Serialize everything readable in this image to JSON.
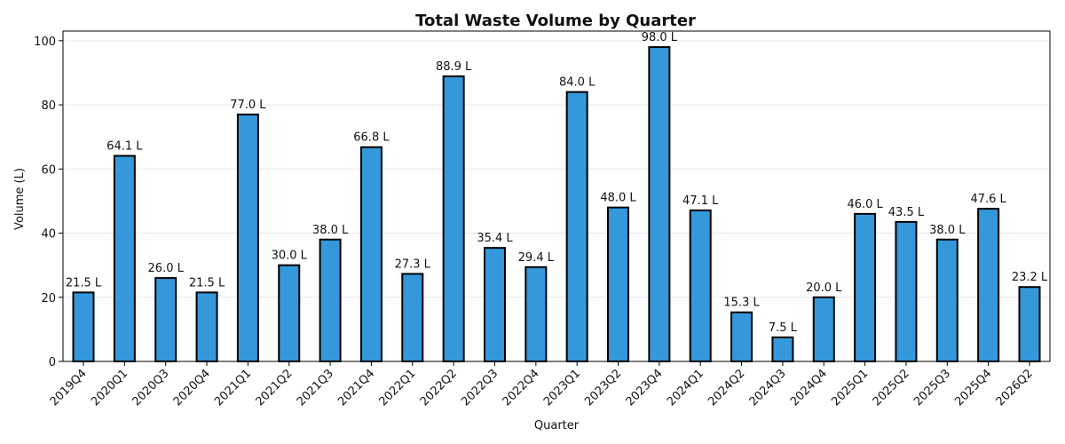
{
  "chart_data": {
    "type": "bar",
    "title": "Total Waste Volume by Quarter",
    "xlabel": "Quarter",
    "ylabel": "Volume (L)",
    "ylim": [
      0,
      103
    ],
    "yticks": [
      0,
      20,
      40,
      60,
      80,
      100
    ],
    "grid": "horizontal",
    "bar_color": "#3498db",
    "value_suffix": " L",
    "categories": [
      "2019Q4",
      "2020Q1",
      "2020Q3",
      "2020Q4",
      "2021Q1",
      "2021Q2",
      "2021Q3",
      "2021Q4",
      "2022Q1",
      "2022Q2",
      "2022Q3",
      "2022Q4",
      "2023Q1",
      "2023Q2",
      "2023Q4",
      "2024Q1",
      "2024Q2",
      "2024Q3",
      "2024Q4",
      "2025Q1",
      "2025Q2",
      "2025Q3",
      "2025Q4",
      "2026Q2"
    ],
    "values": [
      21.5,
      64.1,
      26.0,
      21.5,
      77.0,
      30.0,
      38.0,
      66.8,
      27.3,
      88.9,
      35.4,
      29.4,
      84.0,
      48.0,
      98.0,
      47.1,
      15.3,
      7.5,
      20.0,
      46.0,
      43.5,
      38.0,
      47.6,
      23.2
    ]
  }
}
